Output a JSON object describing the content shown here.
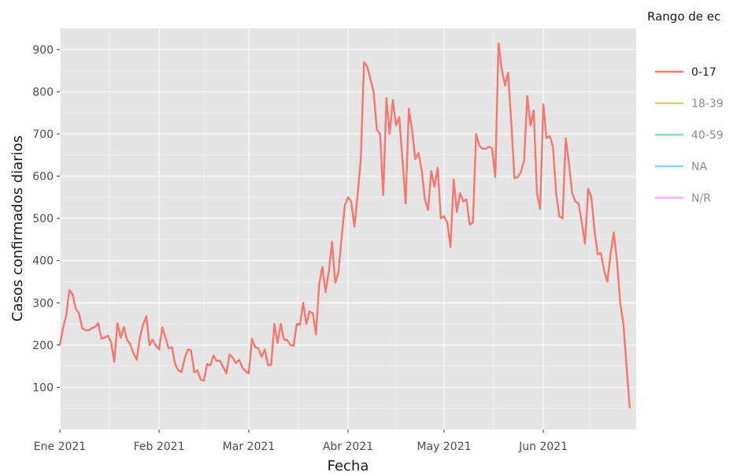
{
  "chart_data": {
    "type": "line",
    "title": "",
    "xlabel": "Fecha",
    "ylabel": "Casos confirmados diarios",
    "x_start": "2021-01-01",
    "x_end": "2021-06-30",
    "ylim": [
      0,
      950
    ],
    "y_ticks": [
      100,
      200,
      300,
      400,
      500,
      600,
      700,
      800,
      900
    ],
    "y_tick_labels": [
      "100",
      "200",
      "300",
      "400",
      "500",
      "600",
      "700",
      "800",
      "900"
    ],
    "x_ticks": [
      "2021-01-01",
      "2021-02-01",
      "2021-03-01",
      "2021-04-01",
      "2021-05-01",
      "2021-06-01"
    ],
    "x_tick_labels": [
      "Ene 2021",
      "Feb 2021",
      "Mar 2021",
      "Abr 2021",
      "May 2021",
      "Jun 2021"
    ],
    "grid": true,
    "background": "#e5e5e5",
    "legend": {
      "title": "Rango de ec",
      "position": "right",
      "entries": [
        {
          "label": "0-17",
          "color": "#f8766d",
          "active": true
        },
        {
          "label": "18-39",
          "color": "#a3a500",
          "active": false
        },
        {
          "label": "40-59",
          "color": "#00bf7d",
          "active": false
        },
        {
          "label": "NA",
          "color": "#00b0f6",
          "active": false
        },
        {
          "label": "N/R",
          "color": "#e76bf3",
          "active": false
        }
      ]
    },
    "series": [
      {
        "name": "0-17",
        "color": "#f8766d",
        "points": [
          [
            "2021-01-01",
            200
          ],
          [
            "2021-01-02",
            240
          ],
          [
            "2021-01-03",
            270
          ],
          [
            "2021-01-04",
            330
          ],
          [
            "2021-01-05",
            320
          ],
          [
            "2021-01-06",
            285
          ],
          [
            "2021-01-07",
            275
          ],
          [
            "2021-01-08",
            240
          ],
          [
            "2021-01-09",
            235
          ],
          [
            "2021-01-10",
            235
          ],
          [
            "2021-01-11",
            240
          ],
          [
            "2021-01-12",
            243
          ],
          [
            "2021-01-13",
            252
          ],
          [
            "2021-01-14",
            215
          ],
          [
            "2021-01-15",
            218
          ],
          [
            "2021-01-16",
            222
          ],
          [
            "2021-01-17",
            208
          ],
          [
            "2021-01-18",
            160
          ],
          [
            "2021-01-19",
            252
          ],
          [
            "2021-01-20",
            217
          ],
          [
            "2021-01-21",
            243
          ],
          [
            "2021-01-22",
            212
          ],
          [
            "2021-01-23",
            202
          ],
          [
            "2021-01-24",
            180
          ],
          [
            "2021-01-25",
            165
          ],
          [
            "2021-01-26",
            218
          ],
          [
            "2021-01-27",
            248
          ],
          [
            "2021-01-28",
            268
          ],
          [
            "2021-01-29",
            200
          ],
          [
            "2021-01-30",
            213
          ],
          [
            "2021-01-31",
            198
          ],
          [
            "2021-02-01",
            190
          ],
          [
            "2021-02-02",
            242
          ],
          [
            "2021-02-03",
            218
          ],
          [
            "2021-02-04",
            192
          ],
          [
            "2021-02-05",
            195
          ],
          [
            "2021-02-06",
            155
          ],
          [
            "2021-02-07",
            140
          ],
          [
            "2021-02-08",
            136
          ],
          [
            "2021-02-09",
            168
          ],
          [
            "2021-02-10",
            190
          ],
          [
            "2021-02-11",
            187
          ],
          [
            "2021-02-12",
            135
          ],
          [
            "2021-02-13",
            140
          ],
          [
            "2021-02-14",
            118
          ],
          [
            "2021-02-15",
            116
          ],
          [
            "2021-02-16",
            155
          ],
          [
            "2021-02-17",
            152
          ],
          [
            "2021-02-18",
            175
          ],
          [
            "2021-02-19",
            162
          ],
          [
            "2021-02-20",
            163
          ],
          [
            "2021-02-21",
            148
          ],
          [
            "2021-02-22",
            133
          ],
          [
            "2021-02-23",
            178
          ],
          [
            "2021-02-24",
            170
          ],
          [
            "2021-02-25",
            157
          ],
          [
            "2021-02-26",
            165
          ],
          [
            "2021-02-27",
            147
          ],
          [
            "2021-02-28",
            138
          ],
          [
            "2021-03-01",
            133
          ],
          [
            "2021-03-02",
            215
          ],
          [
            "2021-03-03",
            195
          ],
          [
            "2021-03-04",
            192
          ],
          [
            "2021-03-05",
            172
          ],
          [
            "2021-03-06",
            190
          ],
          [
            "2021-03-07",
            152
          ],
          [
            "2021-03-08",
            153
          ],
          [
            "2021-03-09",
            250
          ],
          [
            "2021-03-10",
            205
          ],
          [
            "2021-03-11",
            250
          ],
          [
            "2021-03-12",
            213
          ],
          [
            "2021-03-13",
            212
          ],
          [
            "2021-03-14",
            200
          ],
          [
            "2021-03-15",
            198
          ],
          [
            "2021-03-16",
            250
          ],
          [
            "2021-03-17",
            248
          ],
          [
            "2021-03-18",
            300
          ],
          [
            "2021-03-19",
            250
          ],
          [
            "2021-03-20",
            280
          ],
          [
            "2021-03-21",
            275
          ],
          [
            "2021-03-22",
            225
          ],
          [
            "2021-03-23",
            345
          ],
          [
            "2021-03-24",
            385
          ],
          [
            "2021-03-25",
            325
          ],
          [
            "2021-03-26",
            375
          ],
          [
            "2021-03-27",
            445
          ],
          [
            "2021-03-28",
            348
          ],
          [
            "2021-03-29",
            370
          ],
          [
            "2021-03-30",
            455
          ],
          [
            "2021-03-31",
            530
          ],
          [
            "2021-04-01",
            550
          ],
          [
            "2021-04-02",
            540
          ],
          [
            "2021-04-03",
            480
          ],
          [
            "2021-04-04",
            555
          ],
          [
            "2021-04-05",
            640
          ],
          [
            "2021-04-06",
            870
          ],
          [
            "2021-04-07",
            860
          ],
          [
            "2021-04-08",
            830
          ],
          [
            "2021-04-09",
            800
          ],
          [
            "2021-04-10",
            710
          ],
          [
            "2021-04-11",
            700
          ],
          [
            "2021-04-12",
            555
          ],
          [
            "2021-04-13",
            785
          ],
          [
            "2021-04-14",
            700
          ],
          [
            "2021-04-15",
            780
          ],
          [
            "2021-04-16",
            720
          ],
          [
            "2021-04-17",
            740
          ],
          [
            "2021-04-18",
            640
          ],
          [
            "2021-04-19",
            535
          ],
          [
            "2021-04-20",
            760
          ],
          [
            "2021-04-21",
            710
          ],
          [
            "2021-04-22",
            640
          ],
          [
            "2021-04-23",
            655
          ],
          [
            "2021-04-24",
            615
          ],
          [
            "2021-04-25",
            545
          ],
          [
            "2021-04-26",
            520
          ],
          [
            "2021-04-27",
            612
          ],
          [
            "2021-04-28",
            575
          ],
          [
            "2021-04-29",
            620
          ],
          [
            "2021-04-30",
            500
          ],
          [
            "2021-05-01",
            505
          ],
          [
            "2021-05-02",
            490
          ],
          [
            "2021-05-03",
            432
          ],
          [
            "2021-05-04",
            592
          ],
          [
            "2021-05-05",
            515
          ],
          [
            "2021-05-06",
            560
          ],
          [
            "2021-05-07",
            540
          ],
          [
            "2021-05-08",
            545
          ],
          [
            "2021-05-09",
            485
          ],
          [
            "2021-05-10",
            490
          ],
          [
            "2021-05-11",
            700
          ],
          [
            "2021-05-12",
            672
          ],
          [
            "2021-05-13",
            665
          ],
          [
            "2021-05-14",
            665
          ],
          [
            "2021-05-15",
            670
          ],
          [
            "2021-05-16",
            665
          ],
          [
            "2021-05-17",
            598
          ],
          [
            "2021-05-18",
            915
          ],
          [
            "2021-05-19",
            855
          ],
          [
            "2021-05-20",
            815
          ],
          [
            "2021-05-21",
            845
          ],
          [
            "2021-05-22",
            725
          ],
          [
            "2021-05-23",
            595
          ],
          [
            "2021-05-24",
            598
          ],
          [
            "2021-05-25",
            610
          ],
          [
            "2021-05-26",
            638
          ],
          [
            "2021-05-27",
            790
          ],
          [
            "2021-05-28",
            720
          ],
          [
            "2021-05-29",
            755
          ],
          [
            "2021-05-30",
            560
          ],
          [
            "2021-05-31",
            522
          ],
          [
            "2021-06-01",
            770
          ],
          [
            "2021-06-02",
            690
          ],
          [
            "2021-06-03",
            695
          ],
          [
            "2021-06-04",
            670
          ],
          [
            "2021-06-05",
            560
          ],
          [
            "2021-06-06",
            505
          ],
          [
            "2021-06-07",
            500
          ],
          [
            "2021-06-08",
            690
          ],
          [
            "2021-06-09",
            630
          ],
          [
            "2021-06-10",
            560
          ],
          [
            "2021-06-11",
            540
          ],
          [
            "2021-06-12",
            535
          ],
          [
            "2021-06-13",
            490
          ],
          [
            "2021-06-14",
            440
          ],
          [
            "2021-06-15",
            570
          ],
          [
            "2021-06-16",
            550
          ],
          [
            "2021-06-17",
            470
          ],
          [
            "2021-06-18",
            415
          ],
          [
            "2021-06-19",
            418
          ],
          [
            "2021-06-20",
            375
          ],
          [
            "2021-06-21",
            350
          ],
          [
            "2021-06-22",
            415
          ],
          [
            "2021-06-23",
            467
          ],
          [
            "2021-06-24",
            400
          ],
          [
            "2021-06-25",
            300
          ],
          [
            "2021-06-26",
            250
          ],
          [
            "2021-06-27",
            150
          ],
          [
            "2021-06-28",
            50
          ]
        ]
      }
    ]
  }
}
